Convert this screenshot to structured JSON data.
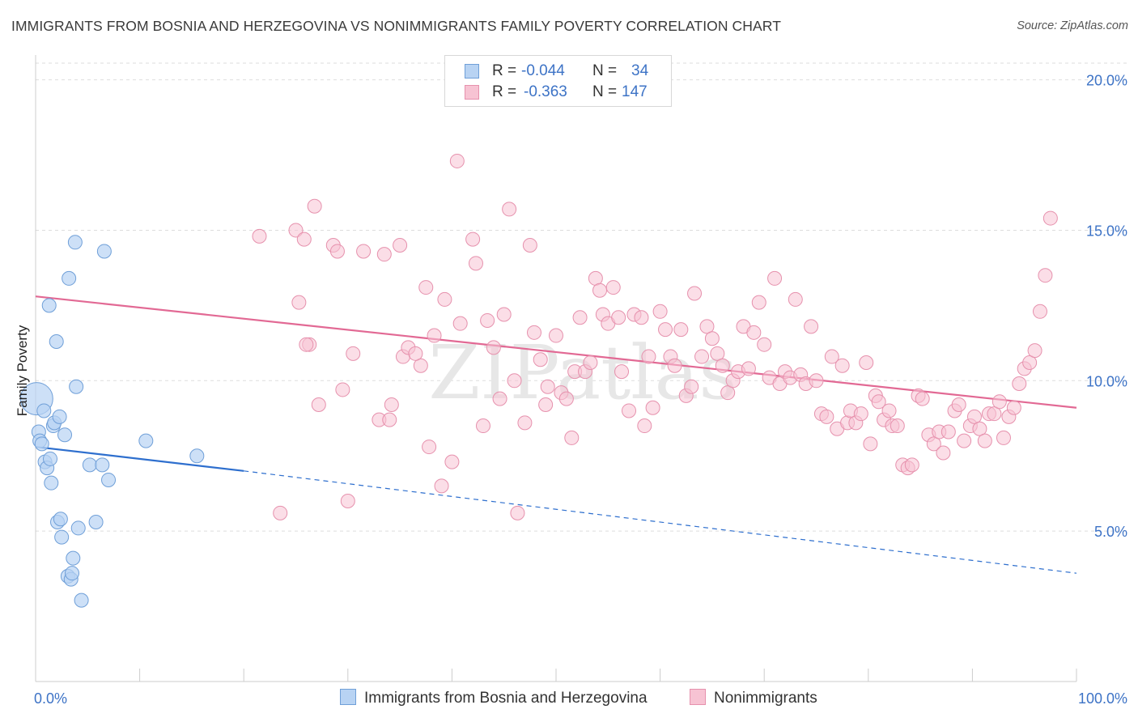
{
  "header": {
    "title": "IMMIGRANTS FROM BOSNIA AND HERZEGOVINA VS NONIMMIGRANTS FAMILY POVERTY CORRELATION CHART",
    "source": "Source: ZipAtlas.com"
  },
  "legend": {
    "rows": [
      {
        "r_label": "R = ",
        "r_value": "-0.044",
        "n_label": "N = ",
        "n_value": "34"
      },
      {
        "r_label": "R = ",
        "r_value": "-0.363",
        "n_label": "N = ",
        "n_value": "147"
      }
    ]
  },
  "bottom_legend": {
    "series1": "Immigrants from Bosnia and Herzegovina",
    "series2": "Nonimmigrants"
  },
  "watermark": "ZIPatlas",
  "colors": {
    "blue_fill": "#b8d3f3",
    "blue_stroke": "#6f9fd8",
    "blue_line": "#2e6fce",
    "pink_fill": "#f7c3d3",
    "pink_stroke": "#e691ad",
    "pink_line": "#e26994",
    "axis_label": "#3d73c6",
    "grid": "#dddddd"
  },
  "chart_data": {
    "type": "scatter",
    "title": "IMMIGRANTS FROM BOSNIA AND HERZEGOVINA VS NONIMMIGRANTS FAMILY POVERTY CORRELATION CHART",
    "xlabel": "",
    "ylabel": "Family Poverty",
    "xlim": [
      0,
      100
    ],
    "ylim": [
      0,
      20.5
    ],
    "x_ticks": [
      "0.0%",
      "100.0%"
    ],
    "y_ticks": [
      {
        "value": 5,
        "label": "5.0%"
      },
      {
        "value": 10,
        "label": "10.0%"
      },
      {
        "value": 15,
        "label": "15.0%"
      },
      {
        "value": 20,
        "label": "20.0%"
      }
    ],
    "grid": true,
    "series": [
      {
        "name": "Immigrants from Bosnia and Herzegovina",
        "r": -0.044,
        "n": 34,
        "trend": {
          "x0": 0,
          "y0": 7.8,
          "x1": 20,
          "y1": 7.0,
          "dashed_to": {
            "x": 100,
            "y": 3.6
          }
        },
        "points": [
          {
            "x": 0.1,
            "y": 9.4,
            "big": true
          },
          {
            "x": 0.3,
            "y": 8.3
          },
          {
            "x": 0.4,
            "y": 8.0
          },
          {
            "x": 0.6,
            "y": 7.9
          },
          {
            "x": 0.8,
            "y": 9.0
          },
          {
            "x": 0.9,
            "y": 7.3
          },
          {
            "x": 1.1,
            "y": 7.1
          },
          {
            "x": 1.3,
            "y": 12.5
          },
          {
            "x": 1.4,
            "y": 7.4
          },
          {
            "x": 1.5,
            "y": 6.6
          },
          {
            "x": 1.7,
            "y": 8.5
          },
          {
            "x": 1.8,
            "y": 8.6
          },
          {
            "x": 2.0,
            "y": 11.3
          },
          {
            "x": 2.1,
            "y": 5.3
          },
          {
            "x": 2.3,
            "y": 8.8
          },
          {
            "x": 2.4,
            "y": 5.4
          },
          {
            "x": 2.5,
            "y": 4.8
          },
          {
            "x": 2.8,
            "y": 8.2
          },
          {
            "x": 3.1,
            "y": 3.5
          },
          {
            "x": 3.2,
            "y": 13.4
          },
          {
            "x": 3.4,
            "y": 3.4
          },
          {
            "x": 3.5,
            "y": 3.6
          },
          {
            "x": 3.6,
            "y": 4.1
          },
          {
            "x": 3.8,
            "y": 14.6
          },
          {
            "x": 3.9,
            "y": 9.8
          },
          {
            "x": 4.1,
            "y": 5.1
          },
          {
            "x": 4.4,
            "y": 2.7
          },
          {
            "x": 5.2,
            "y": 7.2
          },
          {
            "x": 5.8,
            "y": 5.3
          },
          {
            "x": 6.4,
            "y": 7.2
          },
          {
            "x": 6.6,
            "y": 14.3
          },
          {
            "x": 7.0,
            "y": 6.7
          },
          {
            "x": 10.6,
            "y": 8.0
          },
          {
            "x": 15.5,
            "y": 7.5
          }
        ]
      },
      {
        "name": "Nonimmigrants",
        "r": -0.363,
        "n": 147,
        "trend": {
          "x0": 0,
          "y0": 12.8,
          "x1": 100,
          "y1": 9.1
        },
        "points": [
          {
            "x": 21.5,
            "y": 14.8
          },
          {
            "x": 23.5,
            "y": 5.6
          },
          {
            "x": 25.0,
            "y": 15.0
          },
          {
            "x": 25.3,
            "y": 12.6
          },
          {
            "x": 25.8,
            "y": 14.7
          },
          {
            "x": 26.3,
            "y": 11.2
          },
          {
            "x": 26.8,
            "y": 15.8
          },
          {
            "x": 27.2,
            "y": 9.2
          },
          {
            "x": 28.6,
            "y": 14.5
          },
          {
            "x": 29.0,
            "y": 14.3
          },
          {
            "x": 29.5,
            "y": 9.7
          },
          {
            "x": 30.0,
            "y": 6.0
          },
          {
            "x": 30.5,
            "y": 10.9
          },
          {
            "x": 31.5,
            "y": 14.3
          },
          {
            "x": 33.0,
            "y": 8.7
          },
          {
            "x": 33.5,
            "y": 14.2
          },
          {
            "x": 34.0,
            "y": 8.7
          },
          {
            "x": 34.2,
            "y": 9.2
          },
          {
            "x": 35.0,
            "y": 14.5
          },
          {
            "x": 35.3,
            "y": 10.8
          },
          {
            "x": 35.8,
            "y": 11.1
          },
          {
            "x": 37.0,
            "y": 10.5
          },
          {
            "x": 37.5,
            "y": 13.1
          },
          {
            "x": 37.8,
            "y": 7.8
          },
          {
            "x": 38.3,
            "y": 11.5
          },
          {
            "x": 39.0,
            "y": 6.5
          },
          {
            "x": 39.3,
            "y": 12.7
          },
          {
            "x": 40.0,
            "y": 7.3
          },
          {
            "x": 40.5,
            "y": 17.3
          },
          {
            "x": 40.8,
            "y": 11.9
          },
          {
            "x": 42.0,
            "y": 14.7
          },
          {
            "x": 42.3,
            "y": 13.9
          },
          {
            "x": 43.0,
            "y": 8.5
          },
          {
            "x": 43.4,
            "y": 12.0
          },
          {
            "x": 44.0,
            "y": 11.1
          },
          {
            "x": 44.6,
            "y": 9.4
          },
          {
            "x": 45.0,
            "y": 12.2
          },
          {
            "x": 45.5,
            "y": 15.7
          },
          {
            "x": 46.0,
            "y": 10.0
          },
          {
            "x": 46.3,
            "y": 5.6
          },
          {
            "x": 47.0,
            "y": 8.6
          },
          {
            "x": 47.5,
            "y": 14.5
          },
          {
            "x": 47.9,
            "y": 11.6
          },
          {
            "x": 48.5,
            "y": 10.7
          },
          {
            "x": 49.0,
            "y": 9.2
          },
          {
            "x": 49.2,
            "y": 9.8
          },
          {
            "x": 50.0,
            "y": 11.5
          },
          {
            "x": 50.5,
            "y": 9.6
          },
          {
            "x": 51.0,
            "y": 9.4
          },
          {
            "x": 51.5,
            "y": 8.1
          },
          {
            "x": 51.8,
            "y": 10.3
          },
          {
            "x": 52.3,
            "y": 12.1
          },
          {
            "x": 52.8,
            "y": 10.3
          },
          {
            "x": 53.3,
            "y": 10.6
          },
          {
            "x": 53.8,
            "y": 13.4
          },
          {
            "x": 54.2,
            "y": 13.0
          },
          {
            "x": 54.5,
            "y": 12.2
          },
          {
            "x": 55.0,
            "y": 11.9
          },
          {
            "x": 55.5,
            "y": 13.1
          },
          {
            "x": 56.0,
            "y": 12.1
          },
          {
            "x": 56.3,
            "y": 10.3
          },
          {
            "x": 57.0,
            "y": 9.0
          },
          {
            "x": 57.5,
            "y": 12.2
          },
          {
            "x": 58.2,
            "y": 12.1
          },
          {
            "x": 58.5,
            "y": 8.5
          },
          {
            "x": 58.9,
            "y": 10.8
          },
          {
            "x": 59.3,
            "y": 9.1
          },
          {
            "x": 60.0,
            "y": 12.3
          },
          {
            "x": 60.5,
            "y": 11.7
          },
          {
            "x": 61.0,
            "y": 10.8
          },
          {
            "x": 61.4,
            "y": 10.5
          },
          {
            "x": 62.0,
            "y": 11.7
          },
          {
            "x": 62.5,
            "y": 9.5
          },
          {
            "x": 63.0,
            "y": 9.8
          },
          {
            "x": 63.3,
            "y": 12.9
          },
          {
            "x": 64.0,
            "y": 10.8
          },
          {
            "x": 64.5,
            "y": 11.8
          },
          {
            "x": 65.0,
            "y": 11.4
          },
          {
            "x": 65.5,
            "y": 10.9
          },
          {
            "x": 66.0,
            "y": 10.5
          },
          {
            "x": 66.5,
            "y": 9.6
          },
          {
            "x": 67.0,
            "y": 10.0
          },
          {
            "x": 67.5,
            "y": 10.3
          },
          {
            "x": 68.0,
            "y": 11.8
          },
          {
            "x": 68.5,
            "y": 10.4
          },
          {
            "x": 69.0,
            "y": 11.6
          },
          {
            "x": 69.5,
            "y": 12.6
          },
          {
            "x": 70.0,
            "y": 11.2
          },
          {
            "x": 70.5,
            "y": 10.1
          },
          {
            "x": 71.0,
            "y": 13.4
          },
          {
            "x": 71.5,
            "y": 9.9
          },
          {
            "x": 72.0,
            "y": 10.3
          },
          {
            "x": 72.5,
            "y": 10.1
          },
          {
            "x": 73.0,
            "y": 12.7
          },
          {
            "x": 73.5,
            "y": 10.2
          },
          {
            "x": 74.0,
            "y": 9.9
          },
          {
            "x": 74.5,
            "y": 11.8
          },
          {
            "x": 75.0,
            "y": 10.0
          },
          {
            "x": 75.5,
            "y": 8.9
          },
          {
            "x": 76.0,
            "y": 8.8
          },
          {
            "x": 76.5,
            "y": 10.8
          },
          {
            "x": 77.0,
            "y": 8.4
          },
          {
            "x": 77.5,
            "y": 10.5
          },
          {
            "x": 78.0,
            "y": 8.6
          },
          {
            "x": 78.3,
            "y": 9.0
          },
          {
            "x": 78.8,
            "y": 8.6
          },
          {
            "x": 79.3,
            "y": 8.9
          },
          {
            "x": 79.8,
            "y": 10.6
          },
          {
            "x": 80.2,
            "y": 7.9
          },
          {
            "x": 80.7,
            "y": 9.5
          },
          {
            "x": 81.0,
            "y": 9.3
          },
          {
            "x": 81.5,
            "y": 8.7
          },
          {
            "x": 82.0,
            "y": 9.0
          },
          {
            "x": 82.3,
            "y": 8.5
          },
          {
            "x": 82.8,
            "y": 8.5
          },
          {
            "x": 83.3,
            "y": 7.2
          },
          {
            "x": 83.8,
            "y": 7.1
          },
          {
            "x": 84.2,
            "y": 7.2
          },
          {
            "x": 84.8,
            "y": 9.5
          },
          {
            "x": 85.2,
            "y": 9.4
          },
          {
            "x": 85.8,
            "y": 8.2
          },
          {
            "x": 86.3,
            "y": 7.9
          },
          {
            "x": 86.8,
            "y": 8.3
          },
          {
            "x": 87.2,
            "y": 7.6
          },
          {
            "x": 87.7,
            "y": 8.3
          },
          {
            "x": 88.3,
            "y": 9.0
          },
          {
            "x": 88.7,
            "y": 9.2
          },
          {
            "x": 89.2,
            "y": 8.0
          },
          {
            "x": 89.8,
            "y": 8.5
          },
          {
            "x": 90.2,
            "y": 8.8
          },
          {
            "x": 90.7,
            "y": 8.4
          },
          {
            "x": 91.2,
            "y": 8.0
          },
          {
            "x": 91.6,
            "y": 8.9
          },
          {
            "x": 92.1,
            "y": 8.9
          },
          {
            "x": 92.6,
            "y": 9.3
          },
          {
            "x": 93.0,
            "y": 8.1
          },
          {
            "x": 93.5,
            "y": 8.8
          },
          {
            "x": 94.0,
            "y": 9.1
          },
          {
            "x": 94.5,
            "y": 9.9
          },
          {
            "x": 95.0,
            "y": 10.4
          },
          {
            "x": 95.5,
            "y": 10.6
          },
          {
            "x": 96.0,
            "y": 11.0
          },
          {
            "x": 96.5,
            "y": 12.3
          },
          {
            "x": 97.0,
            "y": 13.5
          },
          {
            "x": 97.5,
            "y": 15.4
          },
          {
            "x": 26.0,
            "y": 11.2
          },
          {
            "x": 36.5,
            "y": 10.9
          }
        ]
      }
    ]
  }
}
